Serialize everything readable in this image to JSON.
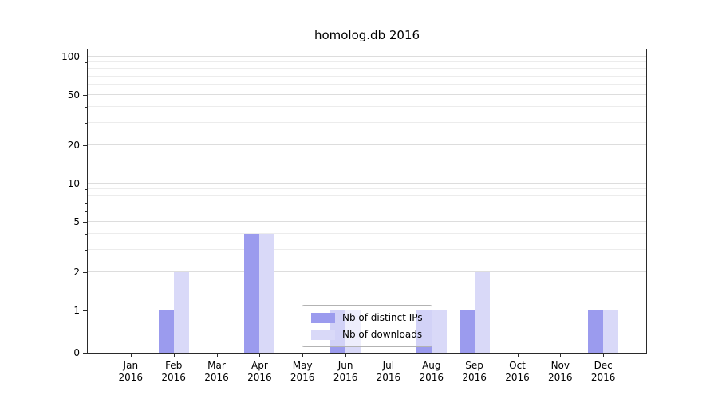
{
  "chart_data": {
    "type": "bar",
    "title": "homolog.db 2016",
    "year_label": "2016",
    "categories": [
      "Jan",
      "Feb",
      "Mar",
      "Apr",
      "May",
      "Jun",
      "Jul",
      "Aug",
      "Sep",
      "Oct",
      "Nov",
      "Dec"
    ],
    "series": [
      {
        "name": "Nb of distinct IPs",
        "color": "#9b9bee",
        "values": [
          0,
          1,
          0,
          4,
          0,
          1,
          0,
          1,
          1,
          0,
          0,
          1
        ]
      },
      {
        "name": "Nb of downloads",
        "color": "#d9d9f8",
        "values": [
          0,
          2,
          0,
          4,
          0,
          1,
          0,
          1,
          2,
          0,
          0,
          1
        ]
      }
    ],
    "yscale": "symlog",
    "ylim": [
      0,
      114
    ],
    "yticks": [
      0,
      1,
      2,
      5,
      10,
      20,
      50,
      100
    ],
    "minor_grid_values": [
      3,
      4,
      6,
      7,
      8,
      9,
      30,
      40,
      60,
      70,
      80,
      90
    ],
    "grid": true,
    "legend_position": "lower center"
  }
}
